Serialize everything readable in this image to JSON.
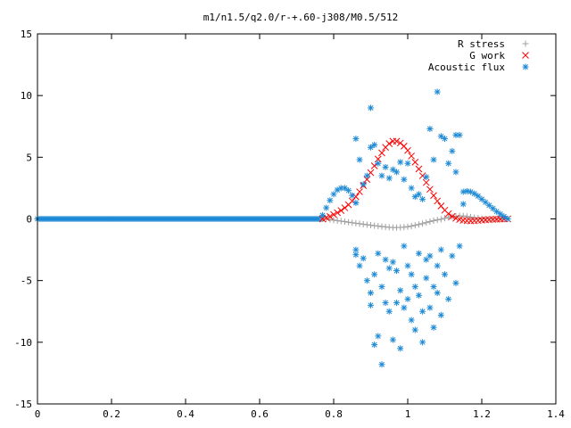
{
  "chart_data": {
    "type": "scatter",
    "title": "m1/n1.5/q2.0/r-+.60-j308/M0.5/512",
    "xlabel": "",
    "ylabel": "",
    "xlim": [
      0,
      1.4
    ],
    "ylim": [
      -15,
      15
    ],
    "x_ticks": [
      0,
      0.2,
      0.4,
      0.6,
      0.8,
      1,
      1.2,
      1.4
    ],
    "x_tick_labels": [
      "0",
      "0.2",
      "0.4",
      "0.6",
      "0.8",
      "1",
      "1.2",
      "1.4"
    ],
    "y_ticks": [
      -15,
      -10,
      -5,
      0,
      5,
      10,
      15
    ],
    "y_tick_labels": [
      "-15",
      "-10",
      "-5",
      "0",
      "5",
      "10",
      "15"
    ],
    "grid": false,
    "legend_position": "top-right",
    "series": [
      {
        "name": "R stress",
        "marker": "plus",
        "color": "#a0a0a0",
        "points": [
          [
            0.77,
            0
          ],
          [
            0.78,
            -0.02
          ],
          [
            0.79,
            -0.05
          ],
          [
            0.8,
            -0.1
          ],
          [
            0.81,
            -0.14
          ],
          [
            0.82,
            -0.18
          ],
          [
            0.83,
            -0.22
          ],
          [
            0.84,
            -0.27
          ],
          [
            0.85,
            -0.31
          ],
          [
            0.86,
            -0.35
          ],
          [
            0.87,
            -0.39
          ],
          [
            0.88,
            -0.43
          ],
          [
            0.89,
            -0.47
          ],
          [
            0.9,
            -0.51
          ],
          [
            0.91,
            -0.55
          ],
          [
            0.92,
            -0.58
          ],
          [
            0.93,
            -0.62
          ],
          [
            0.94,
            -0.65
          ],
          [
            0.95,
            -0.68
          ],
          [
            0.96,
            -0.7
          ],
          [
            0.97,
            -0.7
          ],
          [
            0.98,
            -0.69
          ],
          [
            0.99,
            -0.67
          ],
          [
            1.0,
            -0.63
          ],
          [
            1.01,
            -0.58
          ],
          [
            1.02,
            -0.52
          ],
          [
            1.03,
            -0.45
          ],
          [
            1.04,
            -0.38
          ],
          [
            1.05,
            -0.3
          ],
          [
            1.06,
            -0.22
          ],
          [
            1.07,
            -0.14
          ],
          [
            1.08,
            -0.08
          ],
          [
            1.09,
            -0.03
          ],
          [
            1.1,
            0.05
          ],
          [
            1.11,
            0.12
          ],
          [
            1.12,
            0.18
          ],
          [
            1.13,
            0.22
          ],
          [
            1.14,
            0.24
          ],
          [
            1.15,
            0.24
          ],
          [
            1.16,
            0.2
          ],
          [
            1.17,
            0.15
          ],
          [
            1.18,
            0.1
          ],
          [
            1.19,
            0.06
          ],
          [
            1.2,
            0.03
          ],
          [
            1.21,
            0.01
          ],
          [
            1.22,
            0
          ],
          [
            1.23,
            0
          ],
          [
            1.24,
            0
          ],
          [
            1.25,
            0
          ],
          [
            1.26,
            0
          ],
          [
            1.27,
            0
          ]
        ]
      },
      {
        "name": "G work",
        "marker": "cross",
        "color": "#ff0000",
        "points": [
          [
            0.77,
            0
          ],
          [
            0.78,
            0.1
          ],
          [
            0.79,
            0.2
          ],
          [
            0.8,
            0.35
          ],
          [
            0.81,
            0.5
          ],
          [
            0.82,
            0.68
          ],
          [
            0.83,
            0.9
          ],
          [
            0.84,
            1.15
          ],
          [
            0.85,
            1.45
          ],
          [
            0.86,
            1.8
          ],
          [
            0.87,
            2.2
          ],
          [
            0.88,
            2.7
          ],
          [
            0.89,
            3.2
          ],
          [
            0.9,
            3.75
          ],
          [
            0.91,
            4.3
          ],
          [
            0.92,
            4.85
          ],
          [
            0.93,
            5.35
          ],
          [
            0.94,
            5.8
          ],
          [
            0.95,
            6.1
          ],
          [
            0.96,
            6.3
          ],
          [
            0.97,
            6.3
          ],
          [
            0.98,
            6.15
          ],
          [
            0.99,
            5.9
          ],
          [
            1.0,
            5.55
          ],
          [
            1.01,
            5.1
          ],
          [
            1.02,
            4.6
          ],
          [
            1.03,
            4.05
          ],
          [
            1.04,
            3.5
          ],
          [
            1.05,
            2.95
          ],
          [
            1.06,
            2.4
          ],
          [
            1.07,
            1.9
          ],
          [
            1.08,
            1.45
          ],
          [
            1.09,
            1.05
          ],
          [
            1.1,
            0.7
          ],
          [
            1.11,
            0.42
          ],
          [
            1.12,
            0.2
          ],
          [
            1.13,
            0.05
          ],
          [
            1.14,
            -0.05
          ],
          [
            1.15,
            -0.12
          ],
          [
            1.16,
            -0.15
          ],
          [
            1.17,
            -0.16
          ],
          [
            1.18,
            -0.15
          ],
          [
            1.19,
            -0.13
          ],
          [
            1.2,
            -0.1
          ],
          [
            1.21,
            -0.08
          ],
          [
            1.22,
            -0.06
          ],
          [
            1.23,
            -0.04
          ],
          [
            1.24,
            -0.03
          ],
          [
            1.25,
            -0.02
          ],
          [
            1.26,
            -0.01
          ],
          [
            1.27,
            0
          ]
        ]
      },
      {
        "name": "Acoustic flux",
        "marker": "star",
        "color": "#1e8ad6",
        "points": [
          [
            0.77,
            0.3
          ],
          [
            0.78,
            0.9
          ],
          [
            0.79,
            1.5
          ],
          [
            0.8,
            2.0
          ],
          [
            0.81,
            2.35
          ],
          [
            0.82,
            2.5
          ],
          [
            0.83,
            2.5
          ],
          [
            0.84,
            2.3
          ],
          [
            0.85,
            1.9
          ],
          [
            0.86,
            1.3
          ],
          [
            1.15,
            2.2
          ],
          [
            1.16,
            2.25
          ],
          [
            1.17,
            2.2
          ],
          [
            1.18,
            2.05
          ],
          [
            1.19,
            1.85
          ],
          [
            1.2,
            1.6
          ],
          [
            1.21,
            1.35
          ],
          [
            1.22,
            1.1
          ],
          [
            1.23,
            0.85
          ],
          [
            1.24,
            0.6
          ],
          [
            1.25,
            0.4
          ],
          [
            1.26,
            0.2
          ],
          [
            1.27,
            0
          ],
          [
            0.86,
            6.5
          ],
          [
            0.87,
            4.8
          ],
          [
            0.88,
            2.8
          ],
          [
            0.89,
            3.5
          ],
          [
            0.9,
            9.0
          ],
          [
            0.9,
            5.8
          ],
          [
            0.91,
            6.0
          ],
          [
            0.92,
            4.5
          ],
          [
            0.93,
            3.5
          ],
          [
            0.94,
            4.2
          ],
          [
            0.95,
            3.3
          ],
          [
            0.96,
            4.0
          ],
          [
            0.97,
            3.8
          ],
          [
            0.98,
            4.6
          ],
          [
            0.99,
            3.2
          ],
          [
            1.0,
            4.5
          ],
          [
            1.01,
            2.5
          ],
          [
            1.02,
            1.8
          ],
          [
            1.03,
            2.0
          ],
          [
            1.04,
            1.6
          ],
          [
            1.05,
            3.4
          ],
          [
            1.06,
            7.3
          ],
          [
            1.07,
            4.8
          ],
          [
            1.08,
            10.3
          ],
          [
            1.09,
            6.7
          ],
          [
            1.1,
            6.5
          ],
          [
            1.11,
            4.5
          ],
          [
            1.12,
            5.5
          ],
          [
            1.13,
            6.8
          ],
          [
            1.14,
            6.8
          ],
          [
            1.13,
            3.8
          ],
          [
            1.15,
            1.2
          ],
          [
            0.86,
            -2.5
          ],
          [
            0.86,
            -2.9
          ],
          [
            0.87,
            -3.8
          ],
          [
            0.88,
            -3.2
          ],
          [
            0.89,
            -5.0
          ],
          [
            0.9,
            -6.0
          ],
          [
            0.9,
            -7.0
          ],
          [
            0.91,
            -4.5
          ],
          [
            0.91,
            -10.2
          ],
          [
            0.92,
            -2.8
          ],
          [
            0.92,
            -9.5
          ],
          [
            0.93,
            -11.8
          ],
          [
            0.93,
            -5.5
          ],
          [
            0.94,
            -6.8
          ],
          [
            0.94,
            -3.3
          ],
          [
            0.95,
            -4.0
          ],
          [
            0.95,
            -7.5
          ],
          [
            0.96,
            -3.5
          ],
          [
            0.96,
            -9.8
          ],
          [
            0.97,
            -6.8
          ],
          [
            0.97,
            -4.2
          ],
          [
            0.98,
            -5.8
          ],
          [
            0.98,
            -10.5
          ],
          [
            0.99,
            -2.2
          ],
          [
            0.99,
            -7.2
          ],
          [
            1.0,
            -6.5
          ],
          [
            1.0,
            -3.8
          ],
          [
            1.01,
            -8.2
          ],
          [
            1.01,
            -4.5
          ],
          [
            1.02,
            -5.5
          ],
          [
            1.02,
            -9.0
          ],
          [
            1.03,
            -2.8
          ],
          [
            1.03,
            -6.2
          ],
          [
            1.04,
            -7.5
          ],
          [
            1.04,
            -10.0
          ],
          [
            1.05,
            -3.3
          ],
          [
            1.05,
            -4.8
          ],
          [
            1.06,
            -3.0
          ],
          [
            1.06,
            -7.2
          ],
          [
            1.07,
            -5.5
          ],
          [
            1.07,
            -8.8
          ],
          [
            1.08,
            -3.8
          ],
          [
            1.08,
            -6.0
          ],
          [
            1.09,
            -2.5
          ],
          [
            1.09,
            -7.8
          ],
          [
            1.1,
            -4.5
          ],
          [
            1.11,
            -6.5
          ],
          [
            1.12,
            -3.0
          ],
          [
            1.13,
            -5.2
          ],
          [
            1.14,
            -2.2
          ]
        ]
      }
    ],
    "baseline_series": "Acoustic flux",
    "baseline_x_range": [
      0,
      0.77
    ],
    "baseline_value": 0
  }
}
